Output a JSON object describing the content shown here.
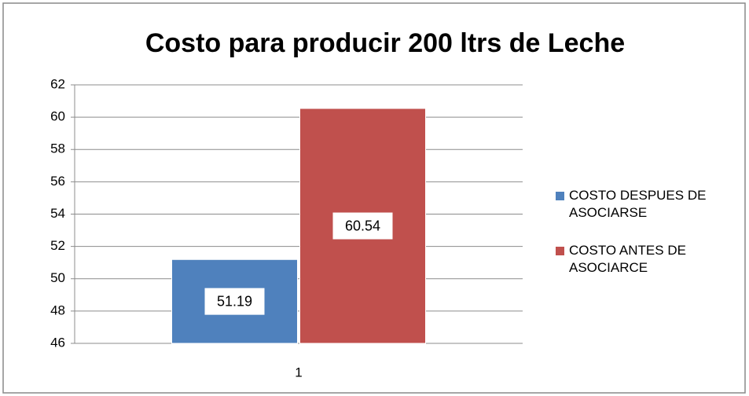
{
  "chart_data": {
    "type": "bar",
    "title": "Costo para producir 200 ltrs de Leche",
    "categories": [
      "1"
    ],
    "series": [
      {
        "name": "COSTO DESPUES DE ASOCIARSE",
        "color": "#4f81bd",
        "values": [
          51.19
        ]
      },
      {
        "name": "COSTO ANTES DE ASOCIARCE",
        "color": "#c0504d",
        "values": [
          60.54
        ]
      }
    ],
    "ylim": [
      46,
      62
    ],
    "yticks": [
      46,
      48,
      50,
      52,
      54,
      56,
      58,
      60,
      62
    ],
    "grid": true,
    "legend": "right"
  }
}
